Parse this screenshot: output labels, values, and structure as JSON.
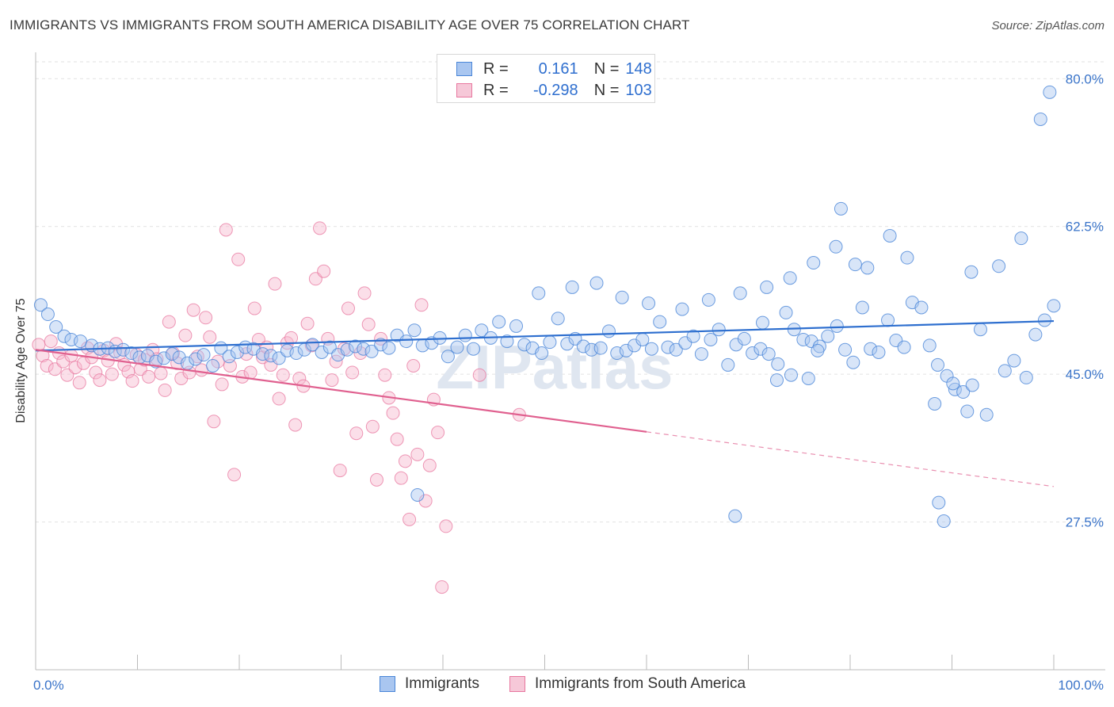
{
  "title": "IMMIGRANTS VS IMMIGRANTS FROM SOUTH AMERICA DISABILITY AGE OVER 75 CORRELATION CHART",
  "source": "Source: ZipAtlas.com",
  "watermark": "ZIPatlas",
  "legend": {
    "rows": [
      {
        "r_label": "R =",
        "r_value": "0.161",
        "n_label": "N =",
        "n_value": "148"
      },
      {
        "r_label": "R =",
        "r_value": "-0.298",
        "n_label": "N =",
        "n_value": "103"
      }
    ]
  },
  "chart_data": {
    "type": "scatter",
    "title": "IMMIGRANTS VS IMMIGRANTS FROM SOUTH AMERICA DISABILITY AGE OVER 75 CORRELATION CHART",
    "xlabel": "",
    "ylabel": "Disability Age Over 75",
    "xlim": [
      0,
      100
    ],
    "ylim": [
      10,
      82
    ],
    "x_tick_labels": [
      "0.0%",
      "100.0%"
    ],
    "y_ticks": [
      27.5,
      45.0,
      62.5,
      80.0
    ],
    "y_tick_labels": [
      "27.5%",
      "45.0%",
      "62.5%",
      "80.0%"
    ],
    "grid": true,
    "legend_position": "top-center",
    "colors": {
      "blue": "#4a86d8",
      "blue_fill": "#a9c6f0",
      "pink": "#e8779f",
      "pink_fill": "#f6b9cf",
      "axis_text": "#3a74c9"
    },
    "series": [
      {
        "name": "Immigrants",
        "color": "#4a86d8",
        "R": 0.161,
        "N": 148,
        "trend": {
          "x0": 0,
          "y0": 47.8,
          "x1": 100,
          "y1": 51.3,
          "dashed_from": null
        },
        "points": [
          [
            0.5,
            53.2
          ],
          [
            1.2,
            52.1
          ],
          [
            2,
            50.6
          ],
          [
            2.8,
            49.5
          ],
          [
            3.5,
            49.1
          ],
          [
            4.4,
            48.9
          ],
          [
            5.5,
            48.4
          ],
          [
            6.3,
            48.0
          ],
          [
            7.1,
            48.1
          ],
          [
            7.8,
            47.7
          ],
          [
            8.6,
            47.9
          ],
          [
            9.4,
            47.5
          ],
          [
            10.2,
            47.0
          ],
          [
            11,
            47.2
          ],
          [
            11.8,
            46.5
          ],
          [
            12.6,
            46.9
          ],
          [
            13.4,
            47.4
          ],
          [
            14.1,
            47.0
          ],
          [
            14.9,
            46.3
          ],
          [
            15.7,
            46.8
          ],
          [
            16.5,
            47.3
          ],
          [
            17.4,
            46.0
          ],
          [
            18.2,
            48.1
          ],
          [
            19,
            47.1
          ],
          [
            19.8,
            47.6
          ],
          [
            20.6,
            48.2
          ],
          [
            21.4,
            48.0
          ],
          [
            22.3,
            47.4
          ],
          [
            23.1,
            47.2
          ],
          [
            23.9,
            46.9
          ],
          [
            24.7,
            47.8
          ],
          [
            25.6,
            47.5
          ],
          [
            26.4,
            47.9
          ],
          [
            27.2,
            48.5
          ],
          [
            28.1,
            47.6
          ],
          [
            28.9,
            48.2
          ],
          [
            29.7,
            47.3
          ],
          [
            30.6,
            47.9
          ],
          [
            31.4,
            48.3
          ],
          [
            32.2,
            48.0
          ],
          [
            33,
            47.7
          ],
          [
            33.9,
            48.5
          ],
          [
            34.7,
            48.1
          ],
          [
            35.5,
            49.6
          ],
          [
            36.4,
            48.9
          ],
          [
            37.2,
            50.2
          ],
          [
            38,
            48.4
          ],
          [
            38.9,
            48.7
          ],
          [
            39.7,
            49.3
          ],
          [
            40.5,
            47.1
          ],
          [
            41.4,
            48.2
          ],
          [
            42.2,
            49.6
          ],
          [
            43,
            48.0
          ],
          [
            43.8,
            50.2
          ],
          [
            44.7,
            49.3
          ],
          [
            45.5,
            51.2
          ],
          [
            46.3,
            48.9
          ],
          [
            47.2,
            50.7
          ],
          [
            48,
            48.5
          ],
          [
            48.8,
            48.1
          ],
          [
            49.7,
            47.5
          ],
          [
            50.5,
            48.8
          ],
          [
            51.3,
            51.6
          ],
          [
            52.2,
            48.6
          ],
          [
            53,
            49.2
          ],
          [
            53.8,
            48.3
          ],
          [
            54.6,
            47.9
          ],
          [
            55.5,
            48.1
          ],
          [
            56.3,
            50.1
          ],
          [
            57.1,
            47.5
          ],
          [
            58,
            47.8
          ],
          [
            58.8,
            48.4
          ],
          [
            59.6,
            49.1
          ],
          [
            60.5,
            48.0
          ],
          [
            61.3,
            51.2
          ],
          [
            62.1,
            48.2
          ],
          [
            62.9,
            47.9
          ],
          [
            63.8,
            48.7
          ],
          [
            64.6,
            49.5
          ],
          [
            65.4,
            47.4
          ],
          [
            66.3,
            49.1
          ],
          [
            67.1,
            50.3
          ],
          [
            68,
            46.1
          ],
          [
            68.8,
            48.5
          ],
          [
            69.6,
            49.2
          ],
          [
            70.4,
            47.5
          ],
          [
            71.2,
            48.0
          ],
          [
            72,
            47.4
          ],
          [
            72.9,
            46.2
          ],
          [
            73.7,
            52.3
          ],
          [
            74.5,
            50.3
          ],
          [
            75.4,
            49.1
          ],
          [
            76.2,
            48.9
          ],
          [
            77,
            48.3
          ],
          [
            77.8,
            49.5
          ],
          [
            78.7,
            50.7
          ],
          [
            79.5,
            47.9
          ],
          [
            80.3,
            46.4
          ],
          [
            81.2,
            52.9
          ],
          [
            82,
            48.0
          ],
          [
            82.8,
            47.6
          ],
          [
            83.7,
            51.4
          ],
          [
            84.5,
            49.0
          ],
          [
            85.3,
            48.2
          ],
          [
            86.1,
            53.5
          ],
          [
            87,
            52.9
          ],
          [
            87.8,
            48.4
          ],
          [
            88.6,
            46.1
          ],
          [
            89.5,
            44.8
          ],
          [
            90.3,
            43.2
          ],
          [
            91.1,
            42.9
          ],
          [
            92,
            43.7
          ],
          [
            92.8,
            50.3
          ],
          [
            68.7,
            28.2
          ],
          [
            71.4,
            51.1
          ],
          [
            72.8,
            44.3
          ],
          [
            74.2,
            44.9
          ],
          [
            75.9,
            44.5
          ],
          [
            76.8,
            47.8
          ],
          [
            80.5,
            58.0
          ],
          [
            79.1,
            64.6
          ],
          [
            81.7,
            57.6
          ],
          [
            83.9,
            61.4
          ],
          [
            85.6,
            58.8
          ],
          [
            88.3,
            41.5
          ],
          [
            90.1,
            43.9
          ],
          [
            91.5,
            40.6
          ],
          [
            93.4,
            40.2
          ],
          [
            95.2,
            45.4
          ],
          [
            96.1,
            46.6
          ],
          [
            97.3,
            44.6
          ],
          [
            98.2,
            49.7
          ],
          [
            99.1,
            51.4
          ],
          [
            88.7,
            29.8
          ],
          [
            89.2,
            27.6
          ],
          [
            91.9,
            57.1
          ],
          [
            94.6,
            57.8
          ],
          [
            96.8,
            61.1
          ],
          [
            98.7,
            75.2
          ],
          [
            99.6,
            78.4
          ],
          [
            100,
            53.1
          ],
          [
            49.4,
            54.6
          ],
          [
            52.7,
            55.3
          ],
          [
            55.1,
            55.8
          ],
          [
            57.6,
            54.1
          ],
          [
            60.2,
            53.4
          ],
          [
            63.5,
            52.7
          ],
          [
            66.1,
            53.8
          ],
          [
            69.2,
            54.6
          ],
          [
            71.8,
            55.3
          ],
          [
            74.1,
            56.4
          ],
          [
            76.4,
            58.2
          ],
          [
            78.6,
            60.1
          ],
          [
            37.5,
            30.7
          ]
        ]
      },
      {
        "name": "Immigrants from South America",
        "color": "#e8779f",
        "R": -0.298,
        "N": 103,
        "trend": {
          "x0": 0,
          "y0": 47.9,
          "x1": 100,
          "y1": 31.7,
          "dashed_from": 60
        },
        "points": [
          [
            0.3,
            48.5
          ],
          [
            0.7,
            47.2
          ],
          [
            1.1,
            46.0
          ],
          [
            1.5,
            48.9
          ],
          [
            1.9,
            45.6
          ],
          [
            2.3,
            47.5
          ],
          [
            2.7,
            46.5
          ],
          [
            3.1,
            44.9
          ],
          [
            3.5,
            47.2
          ],
          [
            3.9,
            45.8
          ],
          [
            4.3,
            44.0
          ],
          [
            4.7,
            46.3
          ],
          [
            5.1,
            48.1
          ],
          [
            5.5,
            47.0
          ],
          [
            5.9,
            45.2
          ],
          [
            6.3,
            44.3
          ],
          [
            6.7,
            47.8
          ],
          [
            7.1,
            46.6
          ],
          [
            7.5,
            45.0
          ],
          [
            7.9,
            48.6
          ],
          [
            8.3,
            47.5
          ],
          [
            8.7,
            46.1
          ],
          [
            9.1,
            45.3
          ],
          [
            9.5,
            44.2
          ],
          [
            9.9,
            47.3
          ],
          [
            10.3,
            45.6
          ],
          [
            10.7,
            46.7
          ],
          [
            11.1,
            44.7
          ],
          [
            11.5,
            47.9
          ],
          [
            11.9,
            46.8
          ],
          [
            12.3,
            45.1
          ],
          [
            12.7,
            43.1
          ],
          [
            13.1,
            51.2
          ],
          [
            13.5,
            47.5
          ],
          [
            13.9,
            46.3
          ],
          [
            14.3,
            44.5
          ],
          [
            14.7,
            49.6
          ],
          [
            15.1,
            45.2
          ],
          [
            15.5,
            52.6
          ],
          [
            15.9,
            47.1
          ],
          [
            16.3,
            45.5
          ],
          [
            16.7,
            51.7
          ],
          [
            17.1,
            49.4
          ],
          [
            17.5,
            39.4
          ],
          [
            17.9,
            46.5
          ],
          [
            18.3,
            43.8
          ],
          [
            18.7,
            62.1
          ],
          [
            19.1,
            46.0
          ],
          [
            19.5,
            33.1
          ],
          [
            19.9,
            58.6
          ],
          [
            20.3,
            44.7
          ],
          [
            20.7,
            47.4
          ],
          [
            21.1,
            45.2
          ],
          [
            21.5,
            52.8
          ],
          [
            21.9,
            49.1
          ],
          [
            22.3,
            47.0
          ],
          [
            22.7,
            48.2
          ],
          [
            23.1,
            46.1
          ],
          [
            23.5,
            55.7
          ],
          [
            23.9,
            42.1
          ],
          [
            24.3,
            44.9
          ],
          [
            24.7,
            48.7
          ],
          [
            25.1,
            49.3
          ],
          [
            25.5,
            39.0
          ],
          [
            25.9,
            44.5
          ],
          [
            26.3,
            43.6
          ],
          [
            26.7,
            51.0
          ],
          [
            27.1,
            48.4
          ],
          [
            27.5,
            56.3
          ],
          [
            27.9,
            62.3
          ],
          [
            28.3,
            57.2
          ],
          [
            28.7,
            49.2
          ],
          [
            29.1,
            44.3
          ],
          [
            29.5,
            46.5
          ],
          [
            29.9,
            33.6
          ],
          [
            30.3,
            48.0
          ],
          [
            30.7,
            52.8
          ],
          [
            31.1,
            45.2
          ],
          [
            31.5,
            38.0
          ],
          [
            31.9,
            47.5
          ],
          [
            32.3,
            54.6
          ],
          [
            32.7,
            50.9
          ],
          [
            33.1,
            38.8
          ],
          [
            33.5,
            32.5
          ],
          [
            33.9,
            49.2
          ],
          [
            34.3,
            44.9
          ],
          [
            34.7,
            42.2
          ],
          [
            35.1,
            40.4
          ],
          [
            35.5,
            37.3
          ],
          [
            35.9,
            32.7
          ],
          [
            36.3,
            34.7
          ],
          [
            36.7,
            27.8
          ],
          [
            37.1,
            46.0
          ],
          [
            37.5,
            35.5
          ],
          [
            37.9,
            53.2
          ],
          [
            38.3,
            30.0
          ],
          [
            38.7,
            34.2
          ],
          [
            39.1,
            42.0
          ],
          [
            39.5,
            38.1
          ],
          [
            39.9,
            19.8
          ],
          [
            40.3,
            27.0
          ],
          [
            43.6,
            44.9
          ],
          [
            47.5,
            40.2
          ]
        ]
      }
    ]
  },
  "bottom_legend": {
    "items": [
      "Immigrants",
      "Immigrants from South America"
    ]
  }
}
